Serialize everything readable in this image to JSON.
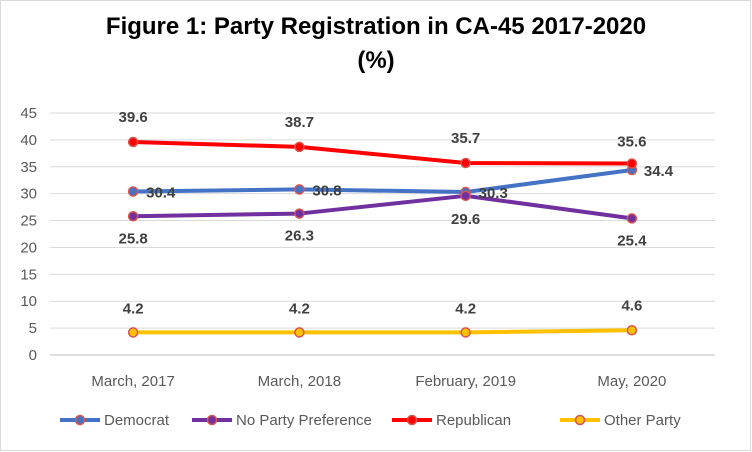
{
  "title_line1": "Figure 1: Party Registration in CA-45 2017-2020",
  "title_line2": "(%)",
  "chart_data": {
    "type": "line",
    "title": "Figure 1: Party Registration in CA-45 2017-2020 (%)",
    "xlabel": "",
    "ylabel": "",
    "categories": [
      "March, 2017",
      "March, 2018",
      "February, 2019",
      "May, 2020"
    ],
    "ylim": [
      0,
      45
    ],
    "yticks": [
      0,
      5,
      10,
      15,
      20,
      25,
      30,
      35,
      40,
      45
    ],
    "grid": true,
    "legend_position": "bottom",
    "series": [
      {
        "name": "Democrat",
        "values": [
          30.4,
          30.8,
          30.3,
          34.4
        ],
        "labels": [
          "30.4",
          "30.8",
          "30.3",
          "34.4"
        ],
        "color": "#4472C4"
      },
      {
        "name": "No Party Preference",
        "values": [
          25.8,
          26.3,
          29.6,
          25.4
        ],
        "labels": [
          "25.8",
          "26.3",
          "29.6",
          "25.4"
        ],
        "color": "#7030A0"
      },
      {
        "name": "Republican",
        "values": [
          39.6,
          38.7,
          35.7,
          35.6
        ],
        "labels": [
          "39.6",
          "38.7",
          "35.7",
          "35.6"
        ],
        "color": "#FF0000"
      },
      {
        "name": "Other Party",
        "values": [
          4.2,
          4.2,
          4.2,
          4.6
        ],
        "labels": [
          "4.2",
          "4.2",
          "4.2",
          "4.6"
        ],
        "color": "#FFC000"
      }
    ]
  }
}
